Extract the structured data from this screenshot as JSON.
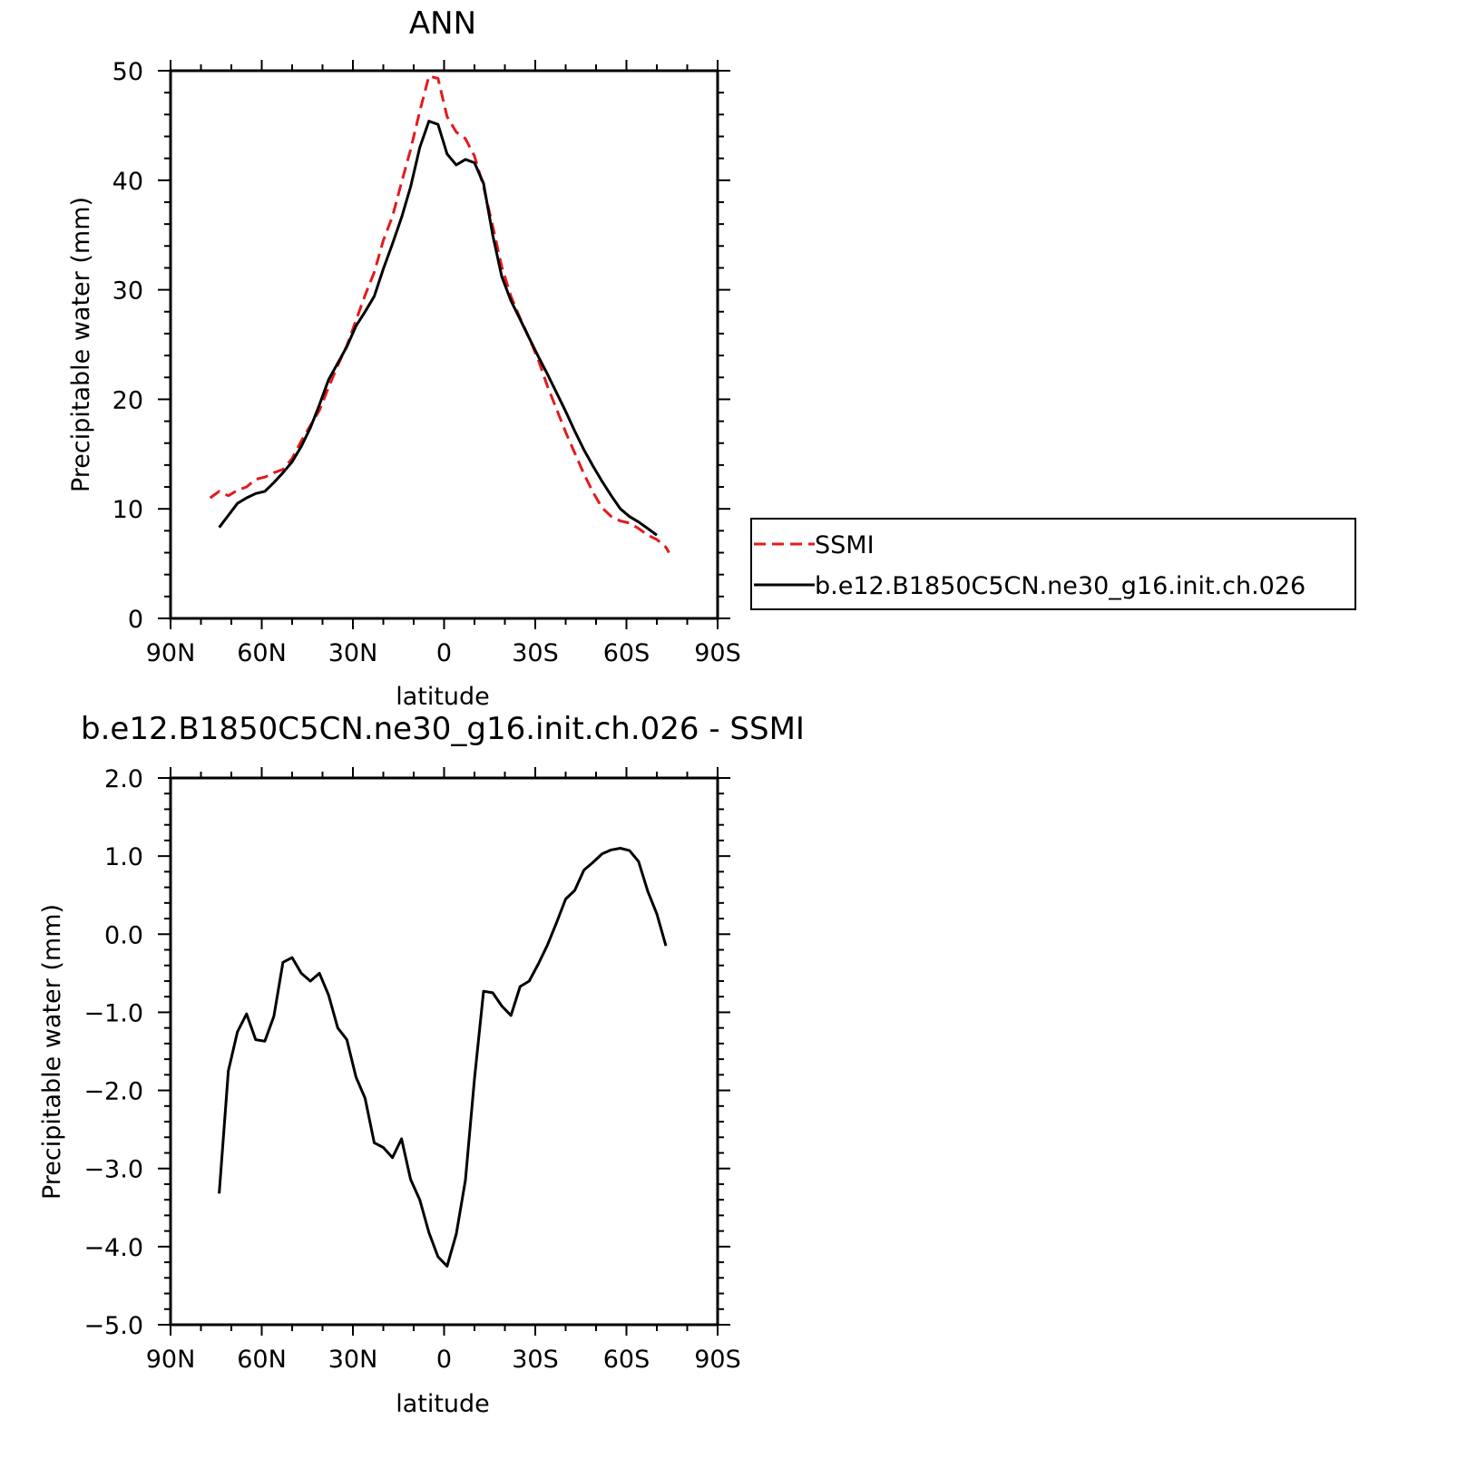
{
  "chart_data": [
    {
      "type": "line",
      "title": "ANN",
      "xlabel": "latitude",
      "ylabel": "Precipitable water (mm)",
      "xlim": [
        90,
        -90
      ],
      "ylim": [
        0,
        50
      ],
      "x_ticks": [
        {
          "value": 90,
          "label": "90N"
        },
        {
          "value": 60,
          "label": "60N"
        },
        {
          "value": 30,
          "label": "30N"
        },
        {
          "value": 0,
          "label": "0"
        },
        {
          "value": -30,
          "label": "30S"
        },
        {
          "value": -60,
          "label": "60S"
        },
        {
          "value": -90,
          "label": "90S"
        }
      ],
      "y_ticks": [
        {
          "value": 0,
          "label": "0"
        },
        {
          "value": 10,
          "label": "10"
        },
        {
          "value": 20,
          "label": "20"
        },
        {
          "value": 30,
          "label": "30"
        },
        {
          "value": 40,
          "label": "40"
        },
        {
          "value": 50,
          "label": "50"
        }
      ],
      "legend": {
        "placement": "right, outside plot",
        "entries": [
          "SSMI",
          "b.e12.B1850C5CN.ne30_g16.init.ch.026"
        ]
      },
      "series": [
        {
          "name": "SSMI",
          "color": "#e41a1c",
          "dash": "dashed",
          "x": [
            77,
            74,
            71,
            68,
            65,
            62,
            59,
            56,
            53,
            50,
            47,
            44,
            41,
            38,
            35,
            32,
            29,
            26,
            23,
            20,
            17,
            14,
            11,
            8,
            5,
            2,
            -1,
            -4,
            -7,
            -10,
            -13,
            -16,
            -19,
            -22,
            -25,
            -28,
            -31,
            -34,
            -37,
            -40,
            -43,
            -46,
            -49,
            -52,
            -55,
            -58,
            -61,
            -64,
            -67,
            -70,
            -73,
            -74
          ],
          "y": [
            11.0,
            11.6,
            11.2,
            11.7,
            12.0,
            12.7,
            12.9,
            13.3,
            13.6,
            14.6,
            16.2,
            17.6,
            19.0,
            21.1,
            23.1,
            24.9,
            27.2,
            29.5,
            31.6,
            34.5,
            36.7,
            39.8,
            42.8,
            46.3,
            49.5,
            49.3,
            45.8,
            44.4,
            43.8,
            42.2,
            39.4,
            35.8,
            32.1,
            29.4,
            27.4,
            25.6,
            23.6,
            21.2,
            19.1,
            17.0,
            15.1,
            13.2,
            11.5,
            10.1,
            9.3,
            8.9,
            8.7,
            8.2,
            7.6,
            7.2,
            6.5,
            6.0
          ]
        },
        {
          "name": "b.e12.B1850C5CN.ne30_g16.init.ch.026",
          "color": "#000000",
          "dash": "solid",
          "x": [
            74,
            71,
            68,
            65,
            62,
            59,
            56,
            53,
            50,
            47,
            44,
            41,
            38,
            35,
            32,
            29,
            26,
            23,
            20,
            17,
            14,
            11,
            8,
            5,
            2,
            -1,
            -4,
            -7,
            -10,
            -13,
            -16,
            -19,
            -22,
            -25,
            -28,
            -31,
            -34,
            -37,
            -40,
            -43,
            -46,
            -49,
            -52,
            -55,
            -58,
            -61,
            -64,
            -67,
            -70
          ],
          "y": [
            8.3,
            9.4,
            10.5,
            11.0,
            11.4,
            11.6,
            12.4,
            13.3,
            14.3,
            15.7,
            17.4,
            19.5,
            21.8,
            23.3,
            24.8,
            26.7,
            28.0,
            29.4,
            31.9,
            34.2,
            36.6,
            39.4,
            43.0,
            45.4,
            45.1,
            42.4,
            41.4,
            41.9,
            41.6,
            39.7,
            35.0,
            31.2,
            29.0,
            27.3,
            25.6,
            23.9,
            22.3,
            20.6,
            18.9,
            17.1,
            15.4,
            13.9,
            12.5,
            11.2,
            10.0,
            9.3,
            8.8,
            8.2,
            7.6
          ]
        }
      ]
    },
    {
      "type": "line",
      "title": "b.e12.B1850C5CN.ne30_g16.init.ch.026 - SSMI",
      "xlabel": "latitude",
      "ylabel": "Precipitable water (mm)",
      "xlim": [
        90,
        -90
      ],
      "ylim": [
        -5.0,
        2.0
      ],
      "x_ticks": [
        {
          "value": 90,
          "label": "90N"
        },
        {
          "value": 60,
          "label": "60N"
        },
        {
          "value": 30,
          "label": "30N"
        },
        {
          "value": 0,
          "label": "0"
        },
        {
          "value": -30,
          "label": "30S"
        },
        {
          "value": -60,
          "label": "60S"
        },
        {
          "value": -90,
          "label": "90S"
        }
      ],
      "y_ticks": [
        {
          "value": 2,
          "label": "2.0"
        },
        {
          "value": 1,
          "label": "1.0"
        },
        {
          "value": 0,
          "label": "0.0"
        },
        {
          "value": -1,
          "label": "-1.0"
        },
        {
          "value": -2,
          "label": "-2.0"
        },
        {
          "value": -3,
          "label": "-3.0"
        },
        {
          "value": -4,
          "label": "-4.0"
        },
        {
          "value": -5,
          "label": "-5.0"
        }
      ],
      "series": [
        {
          "color": "#000000",
          "dash": "solid",
          "x": [
            74,
            71,
            68,
            65,
            62,
            59,
            56,
            53,
            50,
            47,
            44,
            41,
            38,
            35,
            32,
            29,
            26,
            23,
            20,
            17,
            14,
            11,
            8,
            5,
            2,
            -1,
            -4,
            -7,
            -10,
            -13,
            -16,
            -19,
            -22,
            -25,
            -28,
            -31,
            -34,
            -37,
            -40,
            -43,
            -46,
            -49,
            -52,
            -55,
            -58,
            -61,
            -64,
            -67,
            -70
          ],
          "y": [
            -3.32,
            -1.75,
            -1.25,
            -1.02,
            -1.35,
            -1.37,
            -1.05,
            -0.36,
            -0.3,
            -0.5,
            -0.6,
            -0.5,
            -0.78,
            -1.2,
            -1.35,
            -1.83,
            -2.1,
            -2.67,
            -2.73,
            -2.86,
            -2.62,
            -3.14,
            -3.4,
            -3.82,
            -4.13,
            -4.25,
            -3.84,
            -3.15,
            -1.85,
            -0.73,
            -0.75,
            -0.92,
            -1.04,
            -0.67,
            -0.6,
            -0.38,
            -0.14,
            0.15,
            0.45,
            0.56,
            0.82,
            0.92,
            1.03,
            1.08,
            1.1,
            1.07,
            0.93,
            0.55,
            0.26
          ]
        }
      ]
    }
  ],
  "endpoint_extra": {
    "x": -73,
    "y": -0.15
  }
}
